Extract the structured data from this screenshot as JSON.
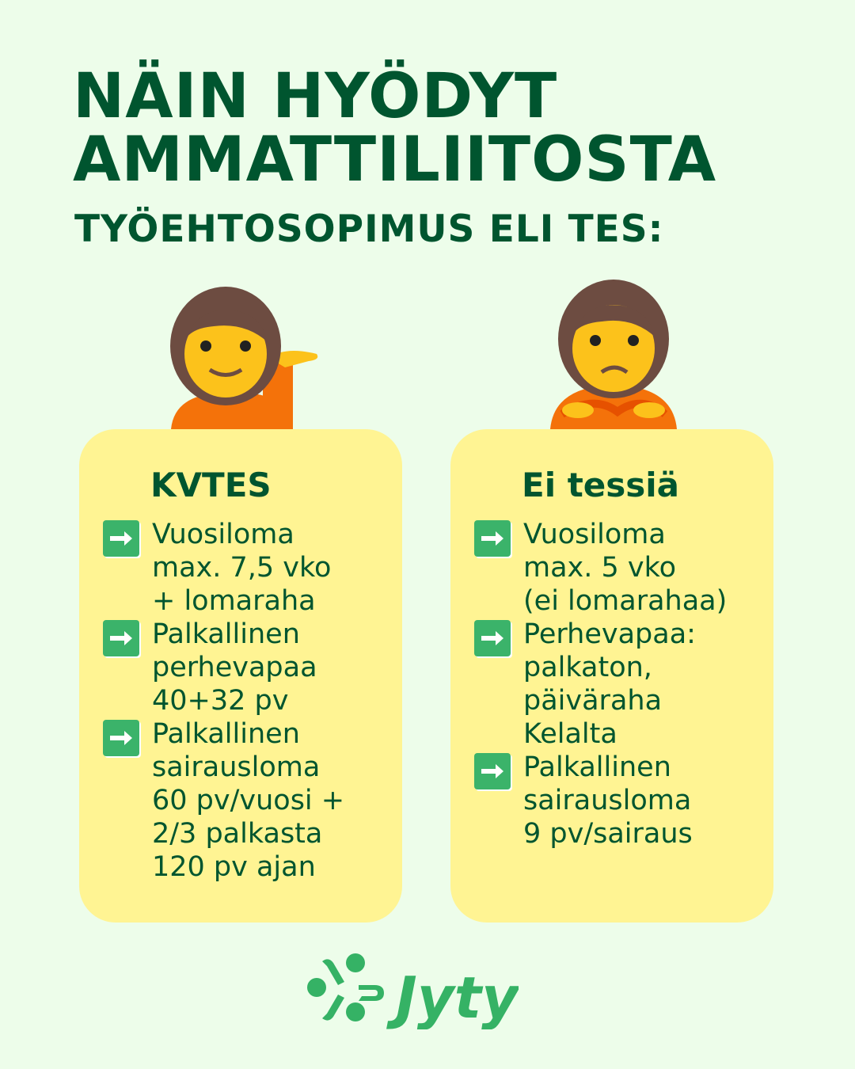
{
  "header": {
    "title_line1": "NÄIN HYÖDYT",
    "title_line2": "AMMATTILIITOSTA",
    "subtitle": "TYÖEHTOSOPIMUS ELI TES:"
  },
  "cards": [
    {
      "heading": "KVTES",
      "emoji": "person-tipping-hand",
      "items": [
        {
          "icon": "right-arrow-icon",
          "text": "Vuosiloma\nmax. 7,5 vko\n+ lomaraha"
        },
        {
          "icon": "right-arrow-icon",
          "text": "Palkallinen\nperhevapaa\n40+32 pv"
        },
        {
          "icon": "right-arrow-icon",
          "text": "Palkallinen\nsairausloma\n60 pv/vuosi +\n2/3 palkasta\n120 pv ajan"
        }
      ]
    },
    {
      "heading": "Ei tessiä",
      "emoji": "person-pouting",
      "items": [
        {
          "icon": "right-arrow-icon",
          "text": "Vuosiloma\nmax. 5 vko\n(ei lomarahaa)"
        },
        {
          "icon": "right-arrow-icon",
          "text": "Perhevapaa:\npalkaton,\npäiväraha\nKelalta"
        },
        {
          "icon": "right-arrow-icon",
          "text": "Palkallinen\nsairausloma\n9 pv/sairaus"
        }
      ]
    }
  ],
  "logo": {
    "text": "Jyty"
  },
  "colors": {
    "background": "#edfdea",
    "text": "#00552f",
    "card": "#fff493",
    "arrow": "#3bb36a",
    "logo": "#35b265"
  }
}
